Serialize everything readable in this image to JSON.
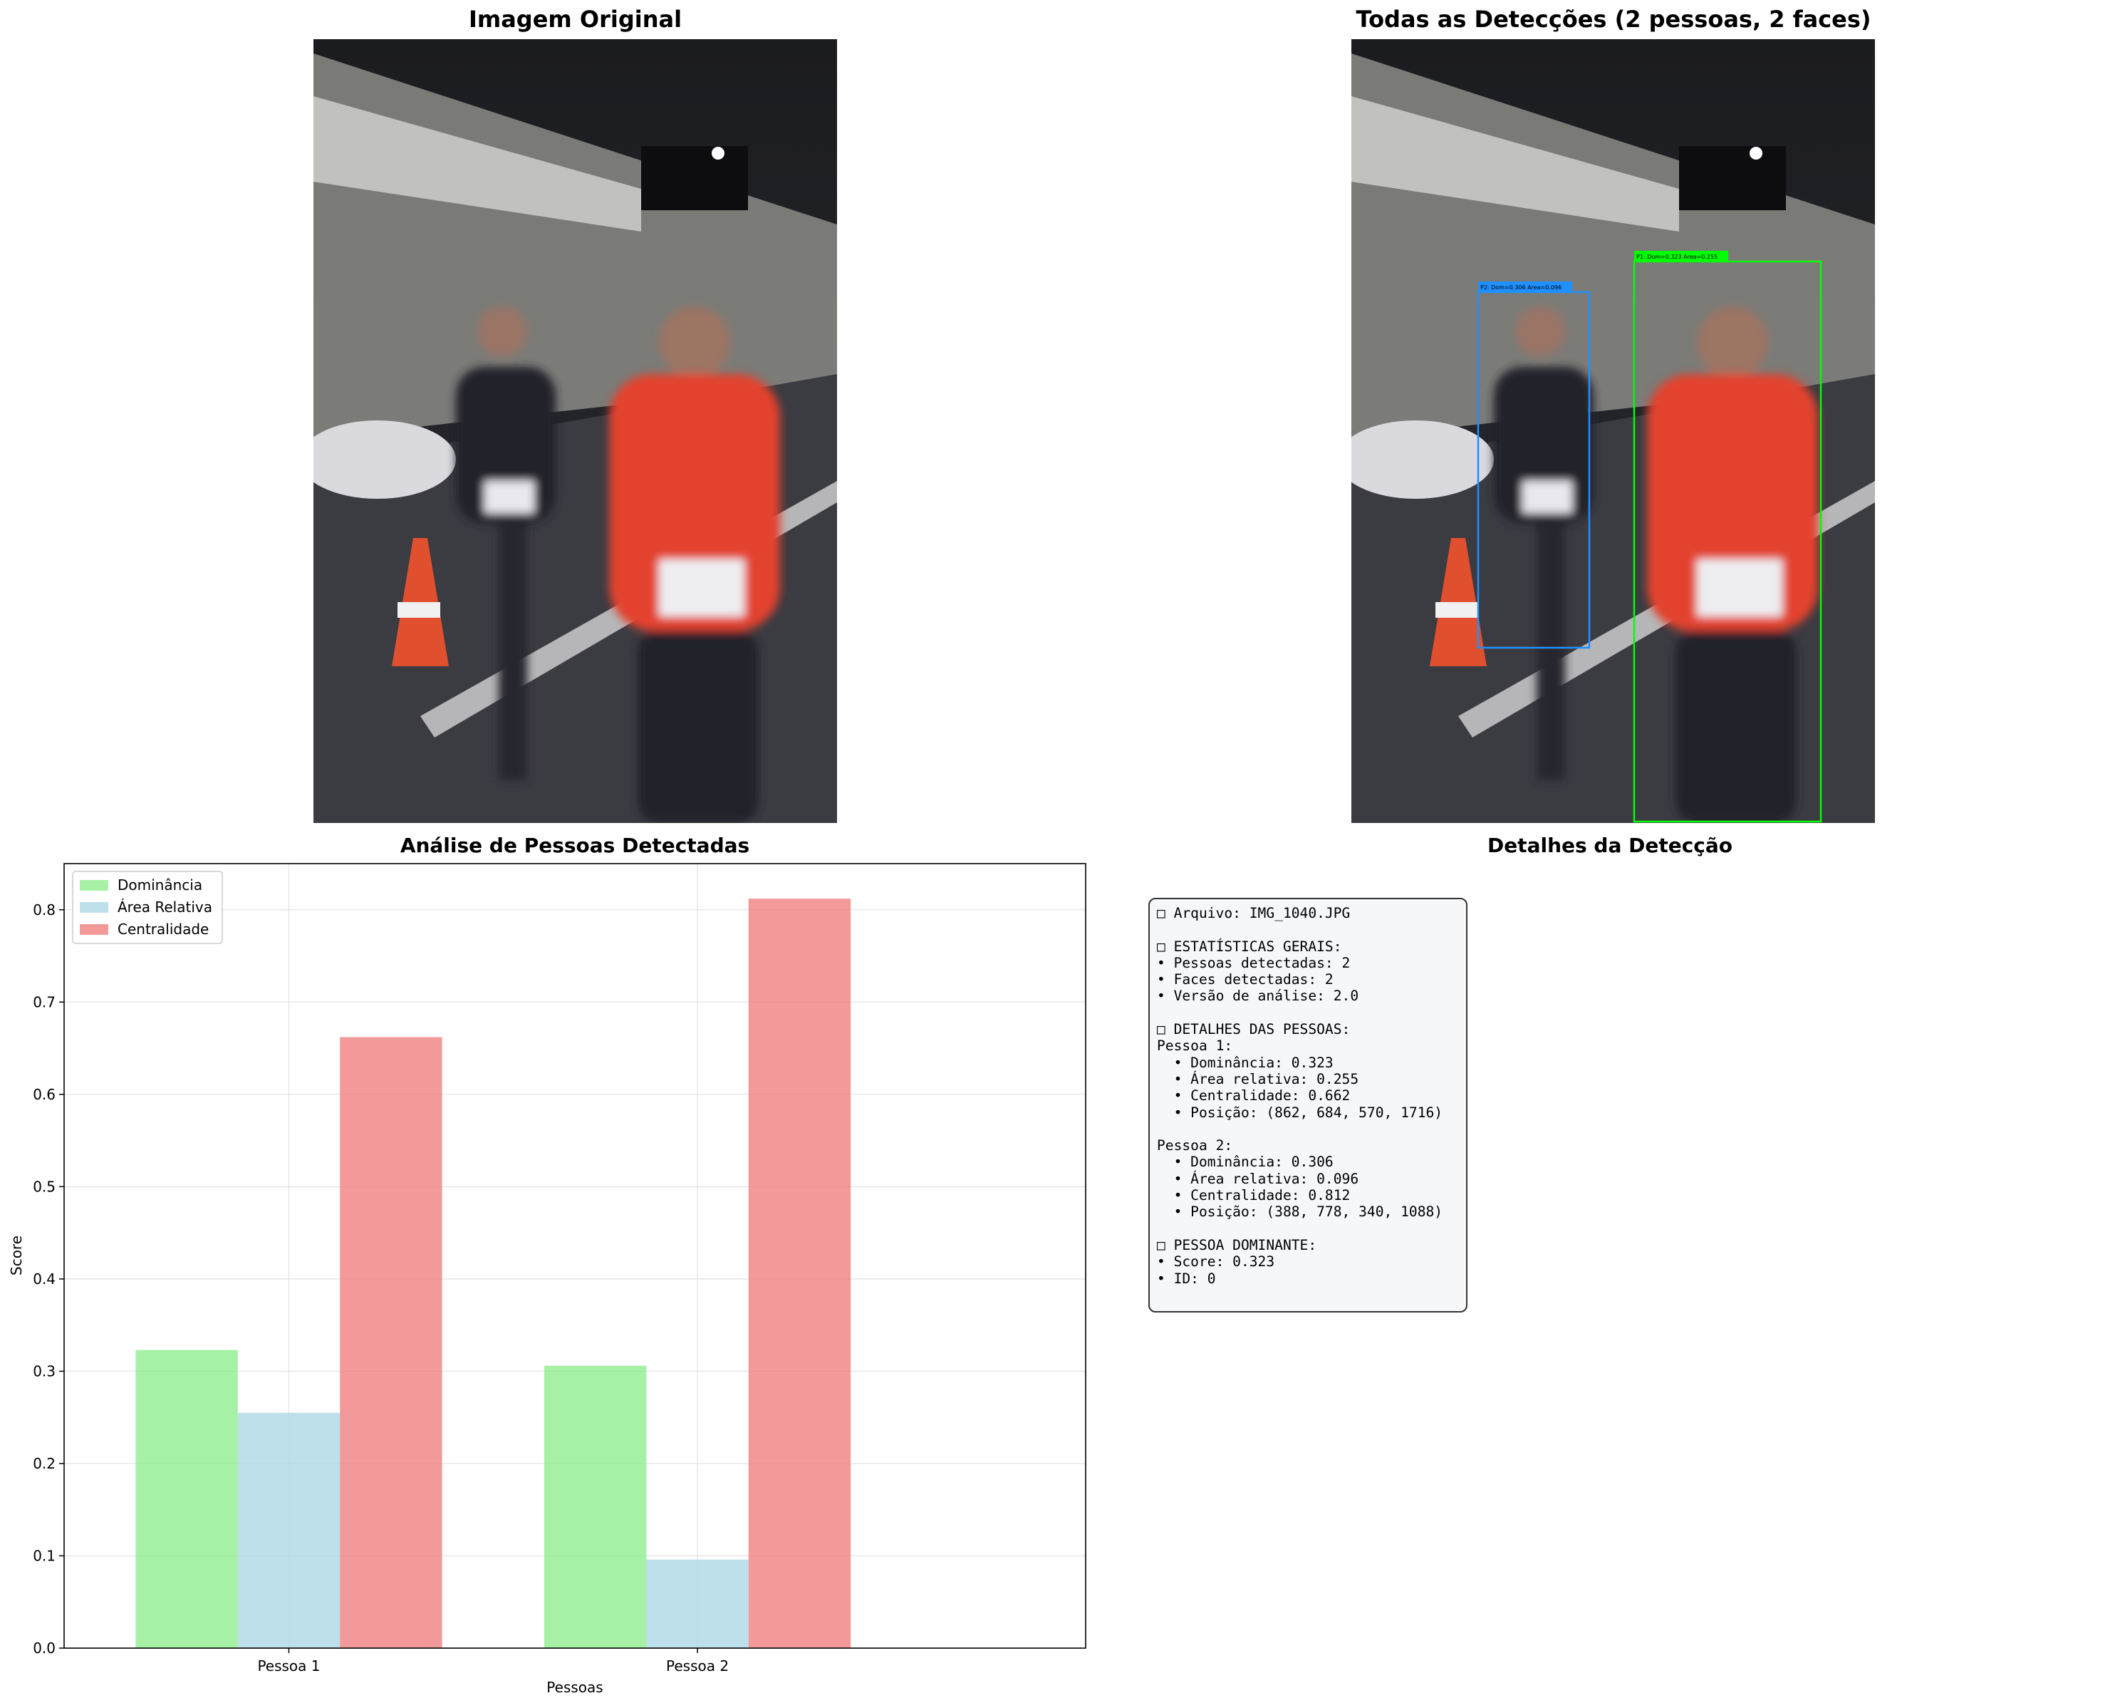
{
  "panels": {
    "original_title": "Imagem Original",
    "detections_title": "Todas as Detecções (2 pessoas, 2 faces)",
    "chart_title": "Análise de Pessoas Detectadas",
    "details_title": "Detalhes da Detecção"
  },
  "detections": [
    {
      "label": "P1: Dom=0.323 Area=0.255",
      "color": "#00ff00"
    },
    {
      "label": "P2: Dom=0.306 Area=0.096",
      "color": "#1e90ff"
    }
  ],
  "chart_data": {
    "type": "bar",
    "title": "Análise de Pessoas Detectadas",
    "xlabel": "Pessoas",
    "ylabel": "Score",
    "categories": [
      "Pessoa 1",
      "Pessoa 2"
    ],
    "series": [
      {
        "name": "Dominância",
        "values": [
          0.323,
          0.306
        ],
        "color": "#90ee90"
      },
      {
        "name": "Área Relativa",
        "values": [
          0.255,
          0.096
        ],
        "color": "#add8e6"
      },
      {
        "name": "Centralidade",
        "values": [
          0.662,
          0.812
        ],
        "color": "#f08080"
      }
    ],
    "ylim": [
      0,
      0.85
    ],
    "yticks": [
      "0.0",
      "0.1",
      "0.2",
      "0.3",
      "0.4",
      "0.5",
      "0.6",
      "0.7",
      "0.8"
    ],
    "grid": true,
    "legend_position": "upper-left"
  },
  "details": {
    "lines": [
      "□ Arquivo: IMG_1040.JPG",
      "",
      "□ ESTATÍSTICAS GERAIS:",
      "• Pessoas detectadas: 2",
      "• Faces detectadas: 2",
      "• Versão de análise: 2.0",
      "",
      "□ DETALHES DAS PESSOAS:",
      "Pessoa 1:",
      "  • Dominância: 0.323",
      "  • Área relativa: 0.255",
      "  • Centralidade: 0.662",
      "  • Posição: (862, 684, 570, 1716)",
      "",
      "Pessoa 2:",
      "  • Dominância: 0.306",
      "  • Área relativa: 0.096",
      "  • Centralidade: 0.812",
      "  • Posição: (388, 778, 340, 1088)",
      "",
      "□ PESSOA DOMINANTE:",
      "• Score: 0.323",
      "• ID: 0"
    ]
  }
}
